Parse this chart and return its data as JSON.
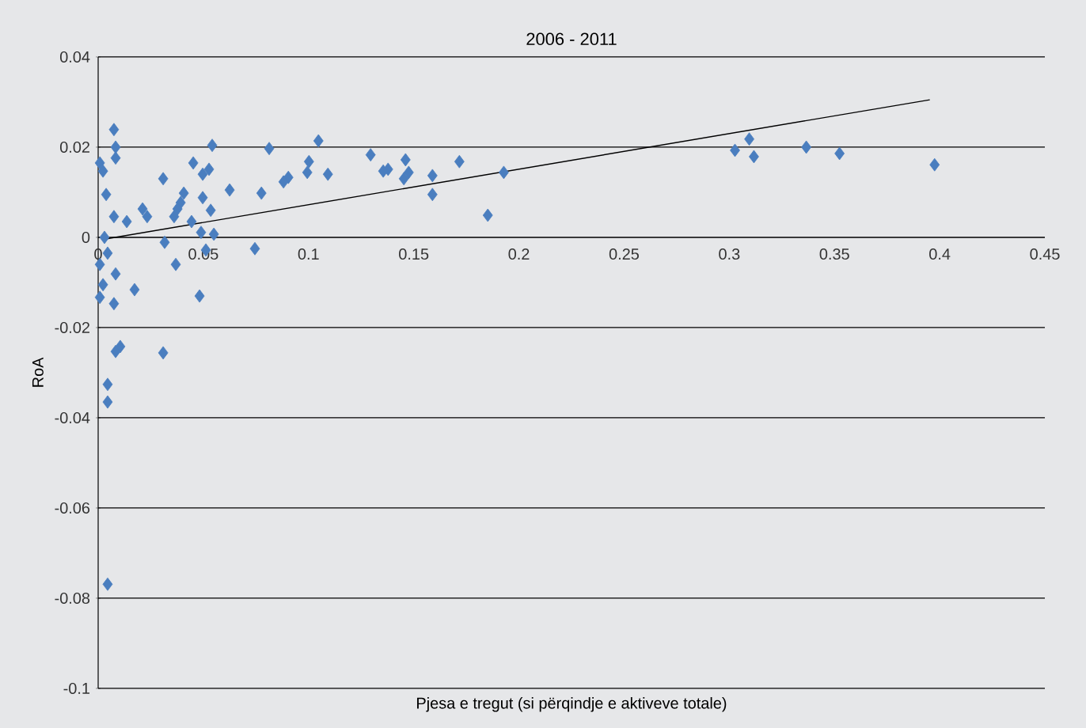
{
  "chart_data": {
    "type": "scatter",
    "title": "2006 - 2011",
    "xlabel": "Pjesa e tregut (si përqindje e aktiveve totale)",
    "ylabel": "RoA",
    "xlim": [
      0,
      0.45
    ],
    "ylim": [
      -0.1,
      0.04
    ],
    "xticks": [
      0,
      0.05,
      0.1,
      0.15,
      0.2,
      0.25,
      0.3,
      0.35,
      0.4,
      0.45
    ],
    "yticks": [
      -0.1,
      -0.08,
      -0.06,
      -0.04,
      -0.02,
      0,
      0.02,
      0.04
    ],
    "grid": "y",
    "marker": "diamond",
    "series": [
      {
        "color": "#4a7ebf",
        "x": [
          0.0075,
          0.0083,
          0.0083,
          0.0023,
          0.0008,
          0.0038,
          0.0075,
          0.0136,
          0.003,
          0.0045,
          0.0008,
          0.0083,
          0.0023,
          0.0008,
          0.0075,
          0.0173,
          0.0105,
          0.0083,
          0.0309,
          0.0045,
          0.0045,
          0.0045,
          0.0211,
          0.0233,
          0.0309,
          0.0407,
          0.0392,
          0.0361,
          0.0377,
          0.0444,
          0.0497,
          0.0535,
          0.0489,
          0.055,
          0.0512,
          0.0316,
          0.0369,
          0.0482,
          0.0625,
          0.0776,
          0.0745,
          0.0542,
          0.0452,
          0.0527,
          0.0497,
          0.0813,
          0.1047,
          0.1002,
          0.0994,
          0.1092,
          0.0904,
          0.0881,
          0.1295,
          0.1378,
          0.1355,
          0.1461,
          0.1476,
          0.1453,
          0.1589,
          0.1589,
          0.1717,
          0.1928,
          0.1852,
          0.3027,
          0.3095,
          0.3117,
          0.3366,
          0.3524,
          0.3976
        ],
        "values": [
          0.0239,
          0.02,
          0.0176,
          0.0147,
          0.0165,
          0.0095,
          0.0046,
          0.0035,
          0.0,
          -0.0035,
          -0.006,
          -0.0081,
          -0.0105,
          -0.0133,
          -0.0147,
          -0.0116,
          -0.0242,
          -0.0253,
          -0.0256,
          -0.0326,
          -0.0365,
          -0.0769,
          0.0063,
          0.0046,
          0.013,
          0.0098,
          0.0077,
          0.0046,
          0.0063,
          0.0035,
          0.0088,
          0.006,
          0.0011,
          0.0007,
          -0.0028,
          -0.0011,
          -0.006,
          -0.013,
          0.0105,
          0.0098,
          -0.0025,
          0.0204,
          0.0165,
          0.0151,
          0.014,
          0.0197,
          0.0214,
          0.0168,
          0.0144,
          0.014,
          0.0133,
          0.0123,
          0.0183,
          0.0151,
          0.0147,
          0.0172,
          0.0144,
          0.013,
          0.0137,
          0.0095,
          0.0168,
          0.0144,
          0.0049,
          0.0193,
          0.0218,
          0.0179,
          0.02,
          0.0186,
          0.0161
        ]
      },
      {
        "type": "line",
        "color": "#000000",
        "marker": "none",
        "x": [
          0.003,
          0.3953
        ],
        "values": [
          -0.0004,
          0.0305
        ]
      }
    ]
  }
}
